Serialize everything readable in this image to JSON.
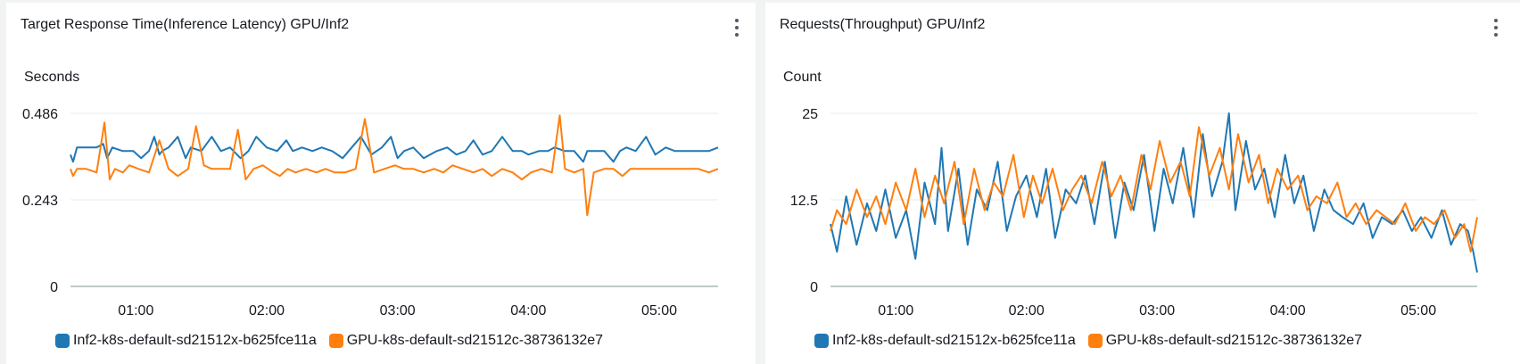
{
  "colors": {
    "inf2": "#1f77b4",
    "gpu": "#ff7f0e",
    "grid": "#e9ebed",
    "axis": "#d1d5db"
  },
  "menu_icon": "vertical-ellipsis-icon",
  "chart_data": [
    {
      "type": "line",
      "title": "Target Response Time(Inference Latency) GPU/Inf2",
      "ylabel": "Seconds",
      "xlabel": "",
      "ylim": [
        0,
        0.486
      ],
      "yticks": [
        "0.486",
        "0.243",
        "0"
      ],
      "ytick_values": [
        0.486,
        0.243,
        0
      ],
      "x_range": [
        0.5,
        5.45
      ],
      "xticks": [
        "01:00",
        "02:00",
        "03:00",
        "04:00",
        "05:00"
      ],
      "xtick_values": [
        1,
        2,
        3,
        4,
        5
      ],
      "grid": true,
      "legend_position": "bottom-left",
      "series": [
        {
          "name": "Inf2-k8s-default-sd21512x-b625fce11a",
          "key": "inf2",
          "x": [
            0.5,
            0.52,
            0.55,
            0.62,
            0.7,
            0.75,
            0.78,
            0.82,
            0.9,
            0.98,
            1.04,
            1.1,
            1.14,
            1.18,
            1.2,
            1.25,
            1.32,
            1.38,
            1.42,
            1.5,
            1.58,
            1.65,
            1.72,
            1.8,
            1.86,
            1.92,
            2.0,
            2.08,
            2.15,
            2.2,
            2.27,
            2.35,
            2.42,
            2.5,
            2.58,
            2.65,
            2.72,
            2.8,
            2.88,
            2.95,
            3.0,
            3.05,
            3.12,
            3.2,
            3.3,
            3.38,
            3.45,
            3.52,
            3.58,
            3.65,
            3.72,
            3.8,
            3.88,
            3.95,
            4.0,
            4.08,
            4.15,
            4.2,
            4.28,
            4.35,
            4.42,
            4.45,
            4.5,
            4.58,
            4.65,
            4.7,
            4.75,
            4.82,
            4.9,
            4.97,
            5.05,
            5.12,
            5.2,
            5.3,
            5.38,
            5.45
          ],
          "values": [
            0.37,
            0.35,
            0.39,
            0.39,
            0.39,
            0.4,
            0.36,
            0.39,
            0.38,
            0.38,
            0.36,
            0.38,
            0.42,
            0.37,
            0.38,
            0.39,
            0.42,
            0.36,
            0.39,
            0.38,
            0.42,
            0.38,
            0.39,
            0.36,
            0.38,
            0.42,
            0.39,
            0.38,
            0.41,
            0.38,
            0.39,
            0.38,
            0.39,
            0.38,
            0.36,
            0.39,
            0.42,
            0.37,
            0.39,
            0.42,
            0.36,
            0.38,
            0.39,
            0.36,
            0.38,
            0.39,
            0.37,
            0.38,
            0.41,
            0.37,
            0.38,
            0.42,
            0.38,
            0.38,
            0.37,
            0.38,
            0.38,
            0.39,
            0.38,
            0.38,
            0.35,
            0.38,
            0.38,
            0.38,
            0.35,
            0.38,
            0.39,
            0.38,
            0.42,
            0.37,
            0.39,
            0.38,
            0.38,
            0.38,
            0.38,
            0.39
          ]
        },
        {
          "name": "GPU-k8s-default-sd21512c-38736132e7",
          "key": "gpu",
          "x": [
            0.5,
            0.52,
            0.55,
            0.62,
            0.7,
            0.76,
            0.8,
            0.84,
            0.9,
            0.95,
            1.02,
            1.1,
            1.18,
            1.25,
            1.32,
            1.4,
            1.46,
            1.52,
            1.58,
            1.65,
            1.72,
            1.78,
            1.84,
            1.9,
            1.97,
            2.05,
            2.1,
            2.16,
            2.22,
            2.3,
            2.38,
            2.45,
            2.52,
            2.6,
            2.68,
            2.75,
            2.82,
            2.9,
            2.98,
            3.05,
            3.12,
            3.2,
            3.28,
            3.35,
            3.42,
            3.5,
            3.58,
            3.65,
            3.72,
            3.8,
            3.88,
            3.95,
            4.02,
            4.1,
            4.18,
            4.24,
            4.28,
            4.35,
            4.42,
            4.45,
            4.5,
            4.58,
            4.65,
            4.72,
            4.78,
            4.85,
            4.92,
            5.0,
            5.08,
            5.15,
            5.22,
            5.3,
            5.38,
            5.45
          ],
          "values": [
            0.33,
            0.31,
            0.33,
            0.33,
            0.32,
            0.46,
            0.3,
            0.33,
            0.32,
            0.34,
            0.33,
            0.32,
            0.41,
            0.33,
            0.31,
            0.33,
            0.45,
            0.34,
            0.33,
            0.33,
            0.33,
            0.44,
            0.3,
            0.33,
            0.34,
            0.32,
            0.31,
            0.33,
            0.32,
            0.33,
            0.32,
            0.33,
            0.32,
            0.32,
            0.33,
            0.47,
            0.32,
            0.33,
            0.34,
            0.33,
            0.33,
            0.32,
            0.33,
            0.32,
            0.34,
            0.33,
            0.32,
            0.33,
            0.31,
            0.33,
            0.32,
            0.3,
            0.32,
            0.33,
            0.32,
            0.48,
            0.33,
            0.32,
            0.33,
            0.2,
            0.32,
            0.33,
            0.33,
            0.31,
            0.33,
            0.33,
            0.33,
            0.33,
            0.33,
            0.33,
            0.33,
            0.33,
            0.32,
            0.33
          ]
        }
      ]
    },
    {
      "type": "line",
      "title": "Requests(Throughput) GPU/Inf2",
      "ylabel": "Count",
      "xlabel": "",
      "ylim": [
        0,
        25
      ],
      "yticks": [
        "25",
        "12.5",
        "0"
      ],
      "ytick_values": [
        25,
        12.5,
        0
      ],
      "x_range": [
        0.5,
        5.45
      ],
      "xticks": [
        "01:00",
        "02:00",
        "03:00",
        "04:00",
        "05:00"
      ],
      "xtick_values": [
        1,
        2,
        3,
        4,
        5
      ],
      "grid": true,
      "legend_position": "bottom-left",
      "series": [
        {
          "name": "Inf2-k8s-default-sd21512x-b625fce11a",
          "key": "inf2",
          "x": [
            0.5,
            0.55,
            0.62,
            0.7,
            0.78,
            0.85,
            0.92,
            1.0,
            1.08,
            1.15,
            1.22,
            1.3,
            1.35,
            1.4,
            1.48,
            1.55,
            1.62,
            1.7,
            1.78,
            1.85,
            1.92,
            2.0,
            2.08,
            2.15,
            2.22,
            2.3,
            2.38,
            2.45,
            2.52,
            2.6,
            2.68,
            2.75,
            2.82,
            2.9,
            2.98,
            3.05,
            3.12,
            3.2,
            3.28,
            3.35,
            3.42,
            3.5,
            3.55,
            3.6,
            3.68,
            3.75,
            3.82,
            3.9,
            3.98,
            4.05,
            4.12,
            4.2,
            4.28,
            4.35,
            4.42,
            4.5,
            4.58,
            4.65,
            4.72,
            4.8,
            4.88,
            4.95,
            5.02,
            5.1,
            5.18,
            5.25,
            5.32,
            5.38,
            5.42,
            5.45
          ],
          "values": [
            9,
            5,
            13,
            6,
            12,
            8,
            14,
            7,
            11,
            4,
            15,
            9,
            20,
            8,
            17,
            6,
            14,
            11,
            18,
            8,
            13,
            16,
            10,
            17,
            7,
            14,
            12,
            16,
            9,
            18,
            7,
            15,
            11,
            19,
            8,
            17,
            12,
            20,
            10,
            22,
            13,
            18,
            25,
            11,
            21,
            14,
            17,
            10,
            19,
            12,
            16,
            8,
            14,
            11,
            10,
            9,
            12,
            7,
            10,
            9,
            11,
            8,
            10,
            7,
            11,
            6,
            9,
            8,
            5,
            2
          ]
        },
        {
          "name": "GPU-k8s-default-sd21512c-38736132e7",
          "key": "gpu",
          "x": [
            0.5,
            0.55,
            0.62,
            0.7,
            0.78,
            0.85,
            0.92,
            1.0,
            1.08,
            1.15,
            1.22,
            1.3,
            1.37,
            1.45,
            1.52,
            1.6,
            1.68,
            1.75,
            1.82,
            1.9,
            1.98,
            2.05,
            2.12,
            2.2,
            2.28,
            2.35,
            2.42,
            2.5,
            2.58,
            2.65,
            2.72,
            2.8,
            2.88,
            2.95,
            3.02,
            3.1,
            3.18,
            3.25,
            3.32,
            3.4,
            3.48,
            3.55,
            3.62,
            3.7,
            3.78,
            3.85,
            3.92,
            4.0,
            4.08,
            4.15,
            4.22,
            4.3,
            4.38,
            4.45,
            4.52,
            4.6,
            4.68,
            4.75,
            4.82,
            4.9,
            4.98,
            5.05,
            5.12,
            5.2,
            5.28,
            5.35,
            5.4,
            5.45
          ],
          "values": [
            8,
            11,
            9,
            14,
            10,
            13,
            9,
            15,
            11,
            17,
            10,
            16,
            12,
            18,
            9,
            17,
            11,
            15,
            13,
            19,
            10,
            16,
            12,
            17,
            11,
            14,
            16,
            12,
            18,
            13,
            16,
            11,
            19,
            14,
            21,
            15,
            18,
            13,
            23,
            16,
            20,
            14,
            22,
            15,
            19,
            12,
            17,
            14,
            16,
            11,
            13,
            12,
            15,
            10,
            12,
            9,
            11,
            10,
            9,
            12,
            8,
            10,
            9,
            11,
            7,
            9,
            5,
            10
          ]
        }
      ]
    }
  ]
}
